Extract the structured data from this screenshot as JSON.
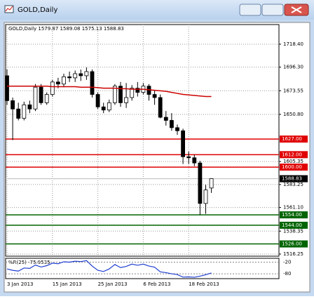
{
  "window": {
    "title": "GOLD,Daily"
  },
  "chart_data": [
    {
      "type": "candlestick",
      "title": "GOLD,Daily  1579.87 1589.08 1575.13 1588.83",
      "categories": [
        "3 Jan 2013",
        null,
        null,
        null,
        null,
        null,
        null,
        null,
        "15 Jan 2013",
        null,
        null,
        null,
        null,
        null,
        null,
        null,
        "25 Jan 2013",
        null,
        null,
        null,
        null,
        null,
        null,
        null,
        "6 Feb 2013",
        null,
        null,
        null,
        null,
        null,
        null,
        null,
        "18 Feb 2013",
        null,
        null,
        null,
        null
      ],
      "open": [
        1688,
        1664,
        1656,
        1647,
        1660,
        1656,
        1677,
        1662,
        1670,
        1682,
        1680,
        1687,
        1686,
        1690,
        1688,
        1692,
        1670,
        1658,
        1655,
        1662,
        1678,
        1662,
        1667,
        1676,
        1672,
        1678,
        1670,
        1667,
        1648,
        1645,
        1638,
        1635,
        1610,
        1609,
        1604,
        1565,
        1579.87
      ],
      "high": [
        1694,
        1667,
        1662,
        1663,
        1664,
        1680,
        1680,
        1672,
        1684,
        1686,
        1690,
        1692,
        1693,
        1694,
        1696,
        1694,
        1672,
        1662,
        1665,
        1680,
        1682,
        1681,
        1679,
        1682,
        1681,
        1680,
        1674,
        1670,
        1654,
        1652,
        1641,
        1637,
        1615,
        1612,
        1606,
        1583,
        1589.08
      ],
      "low": [
        1660,
        1626,
        1645,
        1645,
        1652,
        1654,
        1660,
        1660,
        1668,
        1676,
        1677,
        1682,
        1682,
        1683,
        1684,
        1667,
        1656,
        1652,
        1653,
        1660,
        1658,
        1657,
        1664,
        1668,
        1670,
        1664,
        1660,
        1647,
        1640,
        1635,
        1631,
        1603,
        1603,
        1601,
        1554,
        1555,
        1575.13
      ],
      "close": [
        1664,
        1656,
        1647,
        1660,
        1656,
        1677,
        1662,
        1670,
        1682,
        1680,
        1687,
        1686,
        1690,
        1688,
        1692,
        1670,
        1658,
        1655,
        1662,
        1678,
        1662,
        1667,
        1676,
        1672,
        1678,
        1670,
        1667,
        1648,
        1645,
        1638,
        1635,
        1610,
        1609,
        1604,
        1565,
        1578,
        1588.83
      ],
      "up_color": "#ffffff",
      "down_color": "#000000",
      "ma": {
        "color": "#cc0000",
        "values": [
          1678,
          1678,
          1678,
          1678,
          1678,
          1678,
          1678,
          1678,
          1677.5,
          1677.5,
          1677.5,
          1677.5,
          1677.5,
          1677,
          1677,
          1677,
          1676.5,
          1676,
          1676,
          1676,
          1675.5,
          1675.5,
          1675,
          1675,
          1675,
          1674.5,
          1674,
          1673.5,
          1673,
          1672,
          1671,
          1670,
          1669.5,
          1669,
          1668.5,
          1668,
          1668
        ]
      },
      "ylim": [
        1514.2,
        1737.3
      ],
      "yticks": [
        {
          "value": 1718.4,
          "label": "1718.40"
        },
        {
          "value": 1696.3,
          "label": "1696.30"
        },
        {
          "value": 1673.55,
          "label": "1673.55"
        },
        {
          "value": 1650.8,
          "label": "1650.80"
        },
        {
          "value": 1605.35,
          "label": "1605.35"
        },
        {
          "value": 1583.25,
          "label": "1583.25"
        },
        {
          "value": 1561.1,
          "label": "1561.10"
        },
        {
          "value": 1538.35,
          "label": "1538.35"
        },
        {
          "value": 1516.25,
          "label": "1516.25"
        }
      ],
      "levels": [
        {
          "value": 1627,
          "label": "1627.00",
          "color": "#e00000"
        },
        {
          "value": 1612,
          "label": "1612.00",
          "color": "#e00000"
        },
        {
          "value": 1600,
          "label": "1600.00",
          "color": "#e00000"
        },
        {
          "value": 1554,
          "label": "1554.00",
          "color": "#006400"
        },
        {
          "value": 1544,
          "label": "1544.00",
          "color": "#006400"
        },
        {
          "value": 1526,
          "label": "1526.00",
          "color": "#006400"
        }
      ],
      "last_price": {
        "value": 1588.83,
        "label": "1588.83"
      },
      "grid": true
    },
    {
      "type": "line",
      "title": "%R(25) -75.9535",
      "color": "#1f3fd0",
      "values": [
        -55,
        -62,
        -66,
        -50,
        -52,
        -35,
        -45,
        -38,
        -25,
        -28,
        -18,
        -20,
        -15,
        -17,
        -12,
        -40,
        -62,
        -68,
        -55,
        -32,
        -48,
        -42,
        -30,
        -36,
        -30,
        -40,
        -46,
        -70,
        -74,
        -80,
        -84,
        -97,
        -96,
        -98,
        -92,
        -85,
        -75.9535
      ],
      "ylim": [
        -105,
        0
      ],
      "yticks": [
        -20,
        -80
      ]
    }
  ]
}
